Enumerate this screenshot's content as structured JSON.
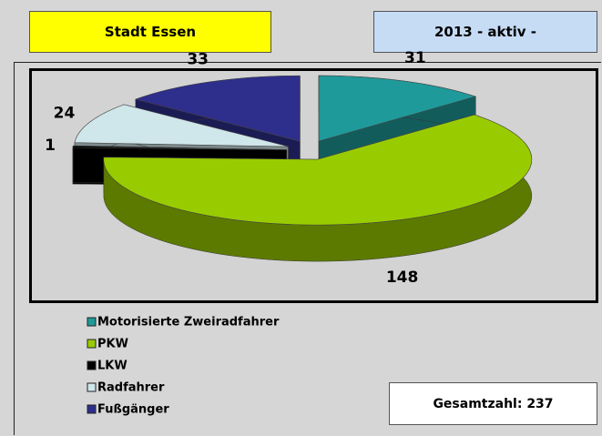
{
  "header": {
    "left": "Stadt Essen",
    "right": "2013 - aktiv -"
  },
  "total": "Gesamtzahl: 237",
  "chart_data": {
    "type": "pie3d",
    "categories": [
      "Motorisierte Zweiradfahrer",
      "PKW",
      "LKW",
      "Radfahrer",
      "Fußgänger"
    ],
    "values": [
      31,
      148,
      1,
      24,
      33
    ],
    "colors": [
      "#1f9a9a",
      "#99cc00",
      "#000000",
      "#cfe6ea",
      "#2e2e8c"
    ],
    "legend": "bottom-left"
  }
}
